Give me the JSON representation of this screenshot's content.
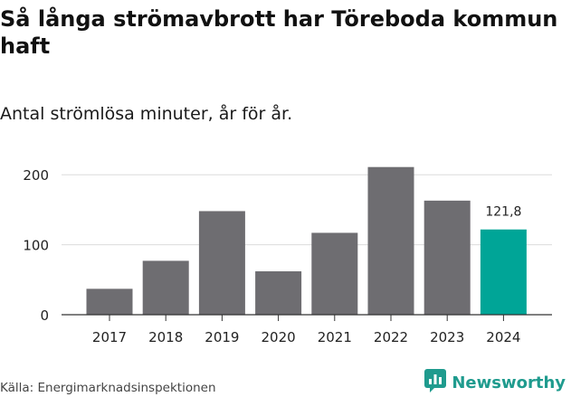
{
  "title": "Så långa strömavbrott har Töreboda kommun haft",
  "subtitle": "Antal strömlösa minuter, år för år.",
  "source": "Källa: Energimarknadsinspektionen",
  "brand": {
    "name": "Newsworthy",
    "icon": "newsworthy-chart-logo-icon"
  },
  "colors": {
    "bar": "#6e6d71",
    "highlight": "#00a597",
    "grid": "#dcdcdc",
    "axis": "#333333",
    "brand": "#1f9b8e"
  },
  "chart_data": {
    "type": "bar",
    "categories": [
      "2017",
      "2018",
      "2019",
      "2020",
      "2021",
      "2022",
      "2023",
      "2024"
    ],
    "values": [
      37,
      77,
      148,
      62,
      117,
      211,
      163,
      121.8
    ],
    "ylim": [
      0,
      230
    ],
    "yticks": [
      0,
      100,
      200
    ],
    "data_labels": [
      {
        "index": 7,
        "text": "121,8"
      }
    ],
    "highlight_index": 7,
    "grid": true,
    "xlabel": "",
    "ylabel": ""
  }
}
